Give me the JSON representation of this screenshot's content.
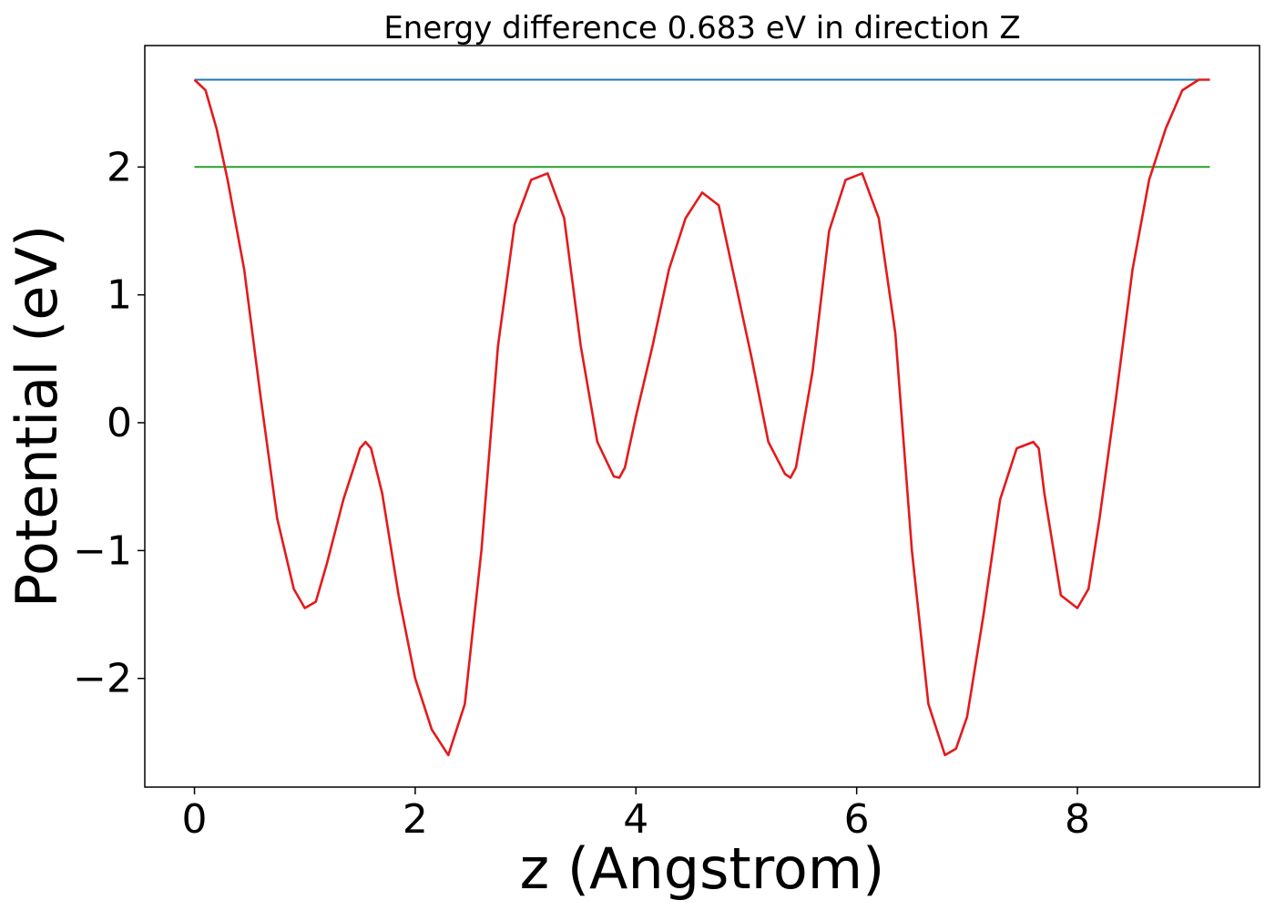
{
  "chart_data": {
    "type": "line",
    "title": "Energy difference 0.683 eV in direction Z",
    "xlabel": "z (Angstrom)",
    "ylabel": "Potential (eV)",
    "xlim": [
      -0.45,
      9.65
    ],
    "ylim": [
      -2.85,
      2.95
    ],
    "xticks": [
      0,
      2,
      4,
      6,
      8
    ],
    "xtick_labels": [
      "0",
      "2",
      "4",
      "6",
      "8"
    ],
    "yticks": [
      -2,
      -1,
      0,
      1,
      2
    ],
    "ytick_labels": [
      "−2",
      "−1",
      "0",
      "1",
      "2"
    ],
    "grid": false,
    "series": [
      {
        "color": "#1f77b4",
        "x": [
          0,
          9.2
        ],
        "y": [
          2.683,
          2.683
        ]
      },
      {
        "color": "#2ca02c",
        "x": [
          0,
          9.2
        ],
        "y": [
          2.0,
          2.0
        ]
      },
      {
        "color": "#e41a1c",
        "x": [
          0.0,
          0.1,
          0.2,
          0.3,
          0.45,
          0.6,
          0.75,
          0.9,
          1.0,
          1.1,
          1.2,
          1.35,
          1.5,
          1.55,
          1.6,
          1.7,
          1.85,
          2.0,
          2.15,
          2.3,
          2.45,
          2.6,
          2.75,
          2.9,
          3.05,
          3.2,
          3.35,
          3.5,
          3.65,
          3.8,
          3.85,
          3.9,
          4.0,
          4.15,
          4.3,
          4.45,
          4.6,
          4.75,
          4.9,
          5.05,
          5.2,
          5.35,
          5.4,
          5.45,
          5.6,
          5.75,
          5.9,
          6.05,
          6.2,
          6.35,
          6.5,
          6.65,
          6.8,
          6.9,
          7.0,
          7.15,
          7.3,
          7.45,
          7.6,
          7.65,
          7.7,
          7.85,
          8.0,
          8.1,
          8.2,
          8.35,
          8.5,
          8.65,
          8.8,
          8.95,
          9.1,
          9.2
        ],
        "y": [
          2.683,
          2.6,
          2.3,
          1.9,
          1.2,
          0.2,
          -0.75,
          -1.3,
          -1.45,
          -1.4,
          -1.1,
          -0.6,
          -0.2,
          -0.15,
          -0.2,
          -0.55,
          -1.35,
          -2.0,
          -2.4,
          -2.6,
          -2.2,
          -1.0,
          0.6,
          1.55,
          1.9,
          1.95,
          1.6,
          0.6,
          -0.15,
          -0.42,
          -0.43,
          -0.35,
          0.05,
          0.6,
          1.2,
          1.6,
          1.8,
          1.7,
          1.1,
          0.5,
          -0.15,
          -0.4,
          -0.43,
          -0.35,
          0.4,
          1.5,
          1.9,
          1.95,
          1.6,
          0.7,
          -1.0,
          -2.2,
          -2.6,
          -2.55,
          -2.3,
          -1.5,
          -0.6,
          -0.2,
          -0.15,
          -0.2,
          -0.55,
          -1.35,
          -1.45,
          -1.3,
          -0.75,
          0.2,
          1.2,
          1.9,
          2.3,
          2.6,
          2.683,
          2.683
        ]
      }
    ]
  }
}
